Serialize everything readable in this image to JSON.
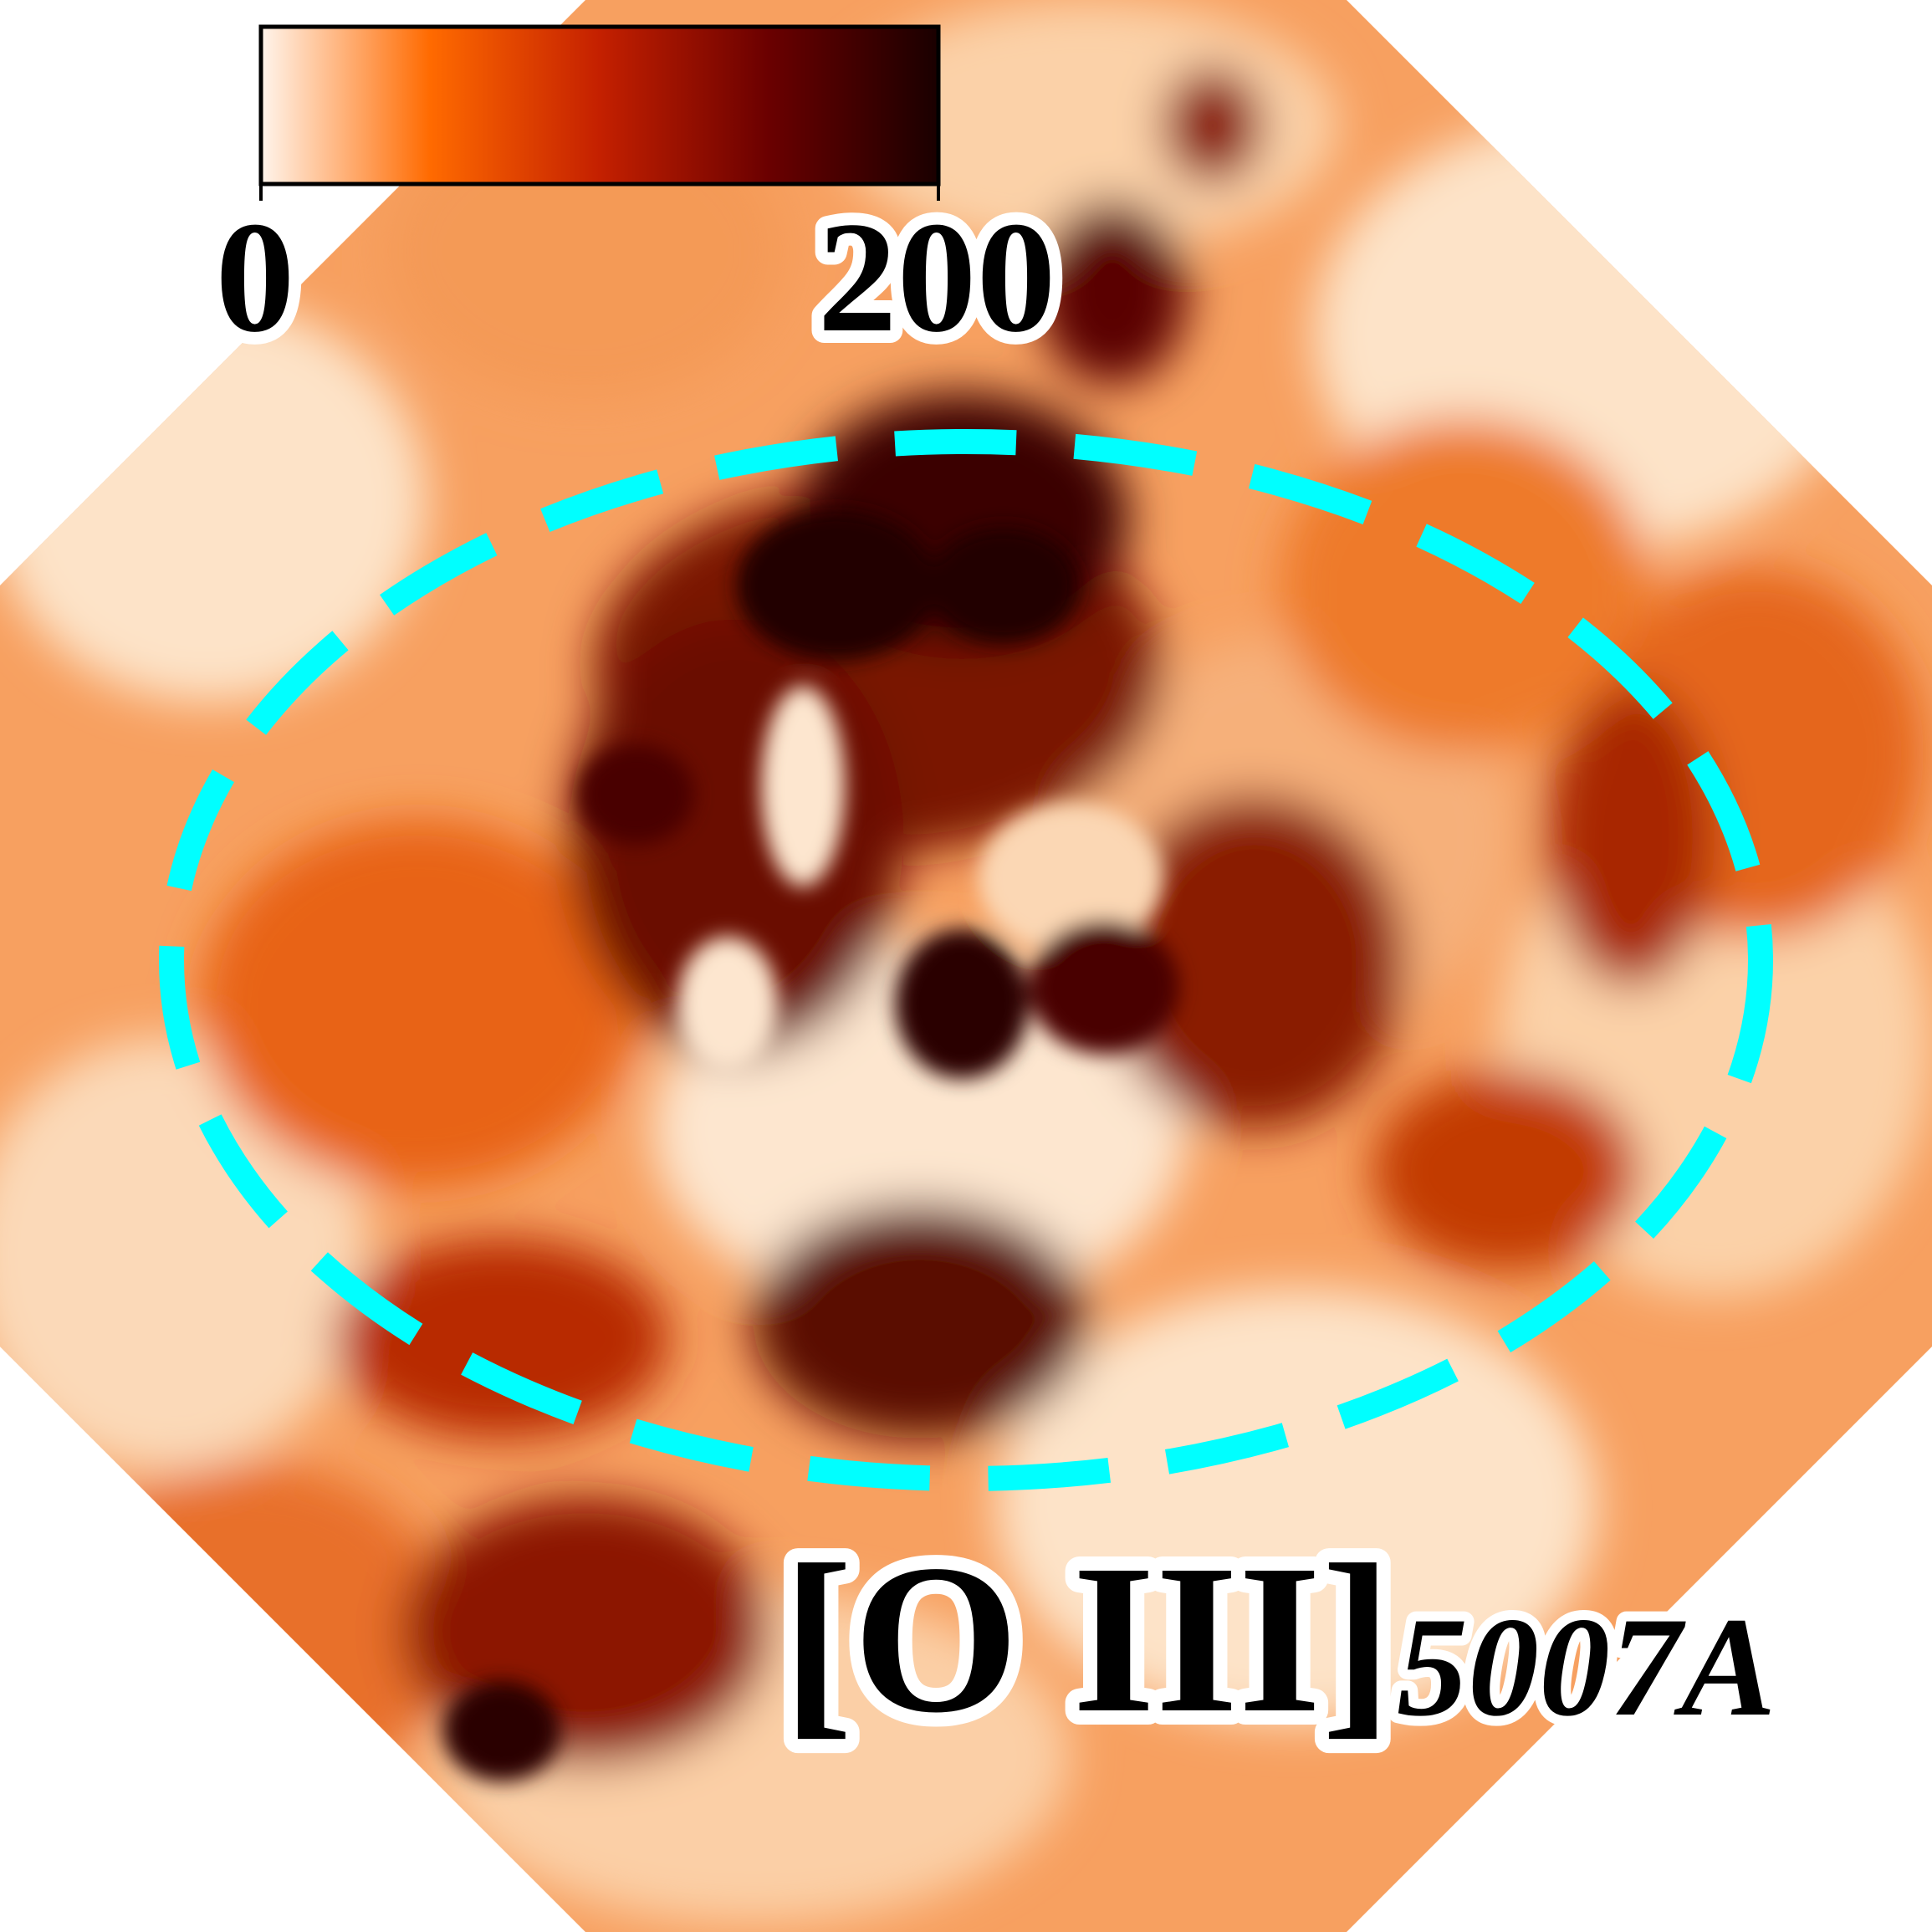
{
  "colorbar": {
    "min_label": "0",
    "max_label": "200",
    "colors": [
      "#fff5ec",
      "#ff6a00",
      "#c42000",
      "#6a0000",
      "#1a0000"
    ]
  },
  "line_label": {
    "species": "[O III]",
    "wavelength": "5007A"
  },
  "overlay": {
    "ellipse_color": "#00ffff",
    "style": "dashed"
  },
  "map_palette": {
    "background": "#ffffff",
    "light": "#fde0c4",
    "mid": "#f07a20",
    "dark": "#8a1a00",
    "darkest": "#2a0000"
  }
}
